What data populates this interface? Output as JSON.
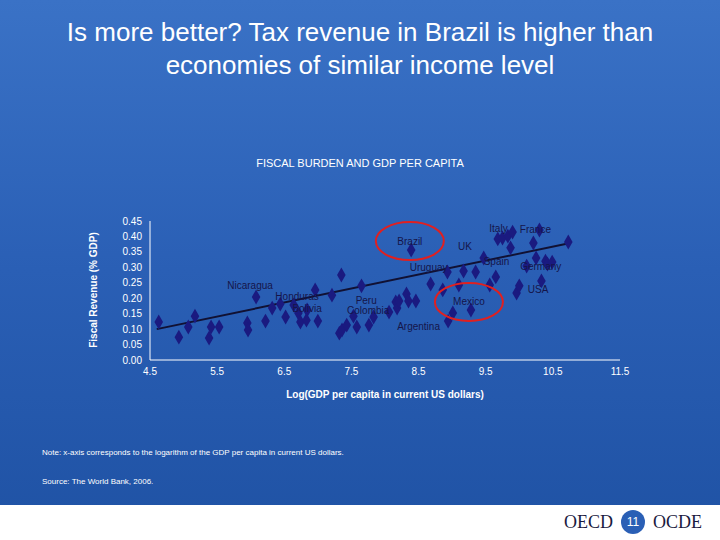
{
  "slide": {
    "title": "Is more better? Tax revenue in Brazil is higher than economies of similar income level",
    "note": "Note: x-axis corresponds to the logarithm of the GDP per capita in current US dollars.",
    "source": "Source: The World Bank, 2006.",
    "footer": {
      "left": "OECD",
      "page": 11,
      "right": "OCDE"
    }
  },
  "chart_data": {
    "type": "scatter",
    "title": "FISCAL BURDEN AND GDP PER CAPITA",
    "x_label": "Log(GDP per capita in current US dollars)",
    "y_label": "Fiscal Revenue (% GDP)",
    "color": "#1a1a80",
    "marker": "diamond",
    "xlim": [
      4.5,
      11.5
    ],
    "xticks": [
      4.5,
      5.5,
      6.5,
      7.5,
      8.5,
      9.5,
      10.5,
      11.5
    ],
    "ylim": [
      0,
      0.45
    ],
    "yticks": [
      {
        "value": 0,
        "label": "0.00"
      },
      {
        "value": 0.05,
        "label": "0.05"
      },
      {
        "value": 0.1,
        "label": "0.10"
      },
      {
        "value": 0.15,
        "label": "0.15"
      },
      {
        "value": 0.2,
        "label": "0.20"
      },
      {
        "value": 0.25,
        "label": "0.25"
      },
      {
        "value": 0.3,
        "label": "0.30"
      },
      {
        "value": 0.35,
        "label": "0.35"
      },
      {
        "value": 0.4,
        "label": "0.40"
      },
      {
        "value": 0.45,
        "label": "0.45"
      }
    ],
    "x": [
      4.63,
      4.93,
      5.07,
      5.17,
      5.38,
      5.41,
      5.53,
      5.95,
      5.96,
      6.08,
      6.22,
      6.32,
      6.44,
      6.52,
      6.64,
      6.71,
      6.74,
      6.84,
      6.96,
      6.83,
      7.0,
      7.21,
      7.32,
      7.36,
      7.35,
      7.43,
      7.53,
      7.58,
      7.65,
      7.76,
      7.83,
      8.06,
      8.16,
      8.18,
      8.21,
      8.32,
      8.35,
      8.39,
      8.46,
      8.68,
      8.86,
      8.93,
      8.94,
      9.01,
      9.1,
      9.17,
      9.28,
      9.35,
      9.47,
      9.56,
      9.65,
      9.68,
      9.75,
      9.83,
      9.87,
      9.9,
      9.96,
      10.0,
      10.11,
      10.21,
      10.25,
      10.3,
      10.33,
      10.39,
      10.42,
      10.49,
      10.73
    ],
    "values": [
      0.123,
      0.074,
      0.107,
      0.142,
      0.071,
      0.107,
      0.107,
      0.12,
      0.097,
      0.204,
      0.126,
      0.168,
      0.181,
      0.139,
      0.178,
      0.152,
      0.123,
      0.162,
      0.227,
      0.129,
      0.126,
      0.21,
      0.087,
      0.097,
      0.275,
      0.113,
      0.142,
      0.107,
      0.24,
      0.113,
      0.139,
      0.155,
      0.188,
      0.168,
      0.191,
      0.214,
      0.191,
      0.356,
      0.191,
      0.246,
      0.227,
      0.285,
      0.126,
      0.152,
      0.243,
      0.288,
      0.162,
      0.285,
      0.33,
      0.243,
      0.269,
      0.392,
      0.395,
      0.401,
      0.363,
      0.414,
      0.217,
      0.24,
      0.304,
      0.379,
      0.33,
      0.421,
      0.256,
      0.32,
      0.311,
      0.317,
      0.382
    ],
    "trend": {
      "type": "line",
      "color": "#111133",
      "x": [
        4.6,
        10.76
      ],
      "y": [
        0.1,
        0.379
      ]
    },
    "annotations": [
      {
        "text": "Brazil",
        "x": 8.37,
        "y": 0.385,
        "marker": "circle",
        "color": "#e02020"
      },
      {
        "text": "UK",
        "x": 9.19,
        "y": 0.369
      },
      {
        "text": "Italy",
        "x": 9.69,
        "y": 0.427
      },
      {
        "text": "France",
        "x": 10.24,
        "y": 0.424
      },
      {
        "text": "Spain",
        "x": 9.66,
        "y": 0.32
      },
      {
        "text": "Germany",
        "x": 10.32,
        "y": 0.304
      },
      {
        "text": "USA",
        "x": 10.28,
        "y": 0.227
      },
      {
        "text": "Uruguay",
        "x": 8.65,
        "y": 0.298
      },
      {
        "text": "Mexico",
        "x": 9.25,
        "y": 0.188,
        "marker": "circle",
        "color": "#e02020"
      },
      {
        "text": "Argentina",
        "x": 8.5,
        "y": 0.107
      },
      {
        "text": "Nicaragua",
        "x": 5.99,
        "y": 0.24
      },
      {
        "text": "Honduras",
        "x": 6.69,
        "y": 0.207
      },
      {
        "text": "Bolivia",
        "x": 6.84,
        "y": 0.168
      },
      {
        "text": "Peru",
        "x": 7.72,
        "y": 0.194
      },
      {
        "text": "Colombia",
        "x": 7.75,
        "y": 0.159
      }
    ]
  }
}
